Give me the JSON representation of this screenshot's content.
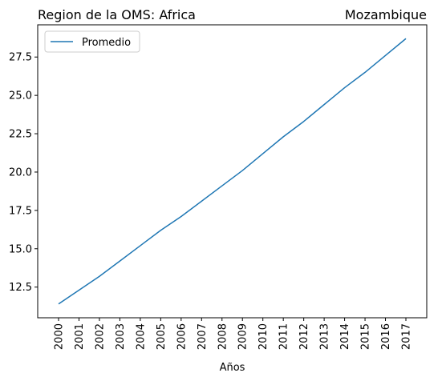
{
  "chart_data": {
    "type": "line",
    "title_left": "Region de la OMS: Africa",
    "title_right": "Mozambique",
    "xlabel": "Años",
    "ylabel": "",
    "x": [
      "2000",
      "2001",
      "2002",
      "2003",
      "2004",
      "2005",
      "2006",
      "2007",
      "2008",
      "2009",
      "2010",
      "2011",
      "2012",
      "2013",
      "2014",
      "2015",
      "2016",
      "2017"
    ],
    "series": [
      {
        "name": "Promedio",
        "color": "#1f77b4",
        "values": [
          11.4,
          12.3,
          13.2,
          14.2,
          15.2,
          16.2,
          17.1,
          18.1,
          19.1,
          20.1,
          21.2,
          22.3,
          23.3,
          24.4,
          25.5,
          26.5,
          27.6,
          28.7
        ]
      }
    ],
    "yticks": [
      12.5,
      15.0,
      17.5,
      20.0,
      22.5,
      25.0,
      27.5
    ],
    "ytick_labels": [
      "12.5",
      "15.0",
      "17.5",
      "20.0",
      "22.5",
      "25.0",
      "27.5"
    ],
    "ylim": [
      10.5,
      29.6
    ],
    "grid": false,
    "legend_position": "top-left"
  }
}
